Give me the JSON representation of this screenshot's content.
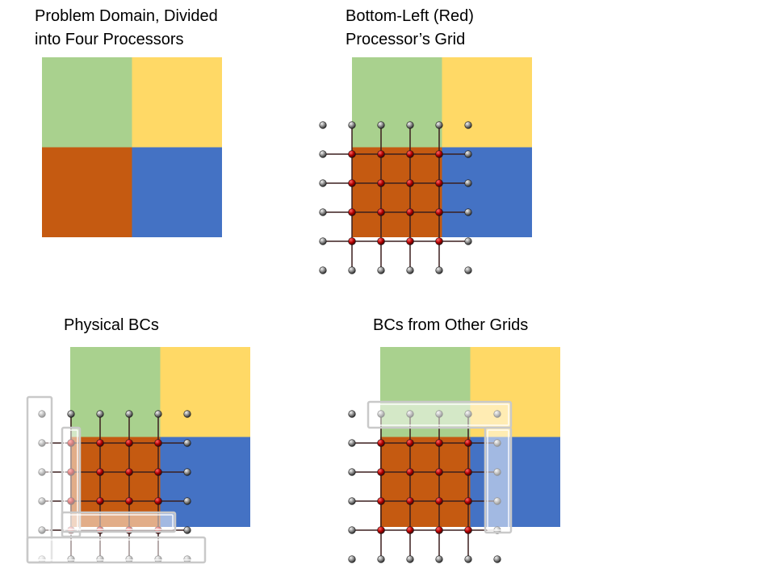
{
  "panels": [
    {
      "id": "domain",
      "title": "Problem Domain, Divided\ninto Four Processors"
    },
    {
      "id": "red-grid",
      "title": "Bottom-Left (Red)\nProcessor’s Grid"
    },
    {
      "id": "physical-bcs",
      "title": "Physical BCs"
    },
    {
      "id": "other-grid-bcs",
      "title": "BCs from Other Grids"
    }
  ],
  "quadrants": {
    "top_left": "#A9D18E",
    "top_right": "#FFD966",
    "bottom_left": "#C55A11",
    "bottom_right": "#4472C4"
  },
  "colors": {
    "interior_node": "#C00000",
    "ghost_node": "#7F7F7F",
    "grid_line": "#3B1F1F",
    "bc_overlay": "#FFFFFF"
  },
  "grid": {
    "interior_nodes_per_side": 4,
    "ghost_layers": 1
  }
}
